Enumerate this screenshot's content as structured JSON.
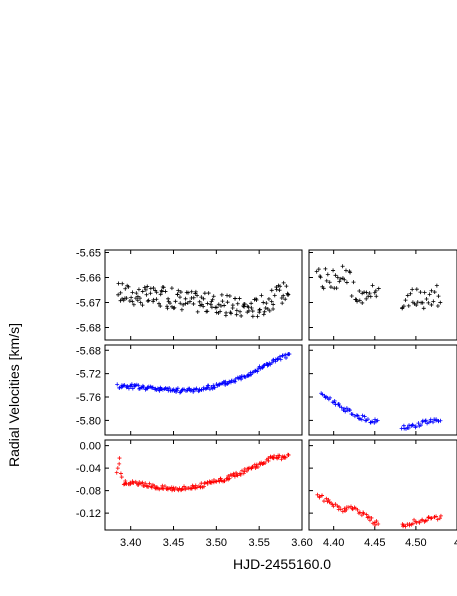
{
  "chart_data": {
    "type": "scatter",
    "xlabel": "HJD-2455160.0",
    "ylabel": "Radial Velocities [km/s]",
    "grid": false,
    "x_ranges": [
      [
        3.37,
        3.6
      ],
      [
        4.37,
        4.55
      ]
    ],
    "x_ticks_left": [
      "3.40",
      "3.45",
      "3.50",
      "3.55",
      "3.60"
    ],
    "x_ticks_right": [
      "4.40",
      "4.45",
      "4.50",
      "4"
    ],
    "rows": [
      {
        "color": "#000000",
        "ylim": [
          -5.685,
          -5.649
        ],
        "y_ticks": [
          "-5.65",
          "-5.66",
          "-5.67",
          "-5.68"
        ],
        "series_left": {
          "x": [
            3.385,
            3.405,
            3.425,
            3.445,
            3.465,
            3.485,
            3.505,
            3.525,
            3.545,
            3.565,
            3.585
          ],
          "y": [
            -5.666,
            -5.667,
            -5.668,
            -5.668,
            -5.669,
            -5.67,
            -5.671,
            -5.672,
            -5.672,
            -5.669,
            -5.664
          ]
        },
        "series_right": {
          "x": [
            4.38,
            4.4,
            4.415,
            4.43,
            4.445,
            4.49,
            4.51,
            4.53
          ],
          "y": [
            -5.66,
            -5.661,
            -5.658,
            -5.67,
            -5.666,
            -5.669,
            -5.668,
            -5.667
          ]
        }
      },
      {
        "color": "#0000ff",
        "ylim": [
          -5.825,
          -5.671
        ],
        "y_ticks": [
          "-5.68",
          "-5.72",
          "-5.76",
          "-5.80"
        ],
        "series_left": {
          "x": [
            3.385,
            3.405,
            3.425,
            3.445,
            3.465,
            3.485,
            3.505,
            3.525,
            3.545,
            3.565,
            3.585
          ],
          "y": [
            -5.741,
            -5.742,
            -5.745,
            -5.748,
            -5.749,
            -5.746,
            -5.739,
            -5.729,
            -5.715,
            -5.7,
            -5.687
          ]
        },
        "series_right": {
          "x": [
            4.385,
            4.4,
            4.415,
            4.43,
            4.445,
            4.485,
            4.5,
            4.515,
            4.53
          ],
          "y": [
            -5.755,
            -5.768,
            -5.782,
            -5.793,
            -5.8,
            -5.812,
            -5.808,
            -5.801,
            -5.797
          ]
        }
      },
      {
        "color": "#ff0000",
        "ylim": [
          -0.15,
          0.01
        ],
        "y_ticks": [
          "0.00",
          "-0.04",
          "-0.08",
          "-0.12"
        ],
        "series_left": {
          "x": [
            3.384,
            3.387,
            3.39,
            3.405,
            3.425,
            3.445,
            3.465,
            3.485,
            3.505,
            3.525,
            3.545,
            3.565,
            3.585
          ],
          "y": [
            -0.05,
            -0.025,
            -0.065,
            -0.067,
            -0.072,
            -0.076,
            -0.075,
            -0.07,
            -0.062,
            -0.051,
            -0.037,
            -0.022,
            -0.02
          ]
        },
        "series_right": {
          "x": [
            4.38,
            4.395,
            4.41,
            4.42,
            4.43,
            4.44,
            4.45,
            4.485,
            4.5,
            4.515,
            4.53
          ],
          "y": [
            -0.088,
            -0.1,
            -0.115,
            -0.108,
            -0.116,
            -0.125,
            -0.137,
            -0.141,
            -0.135,
            -0.13,
            -0.128
          ]
        }
      }
    ]
  }
}
